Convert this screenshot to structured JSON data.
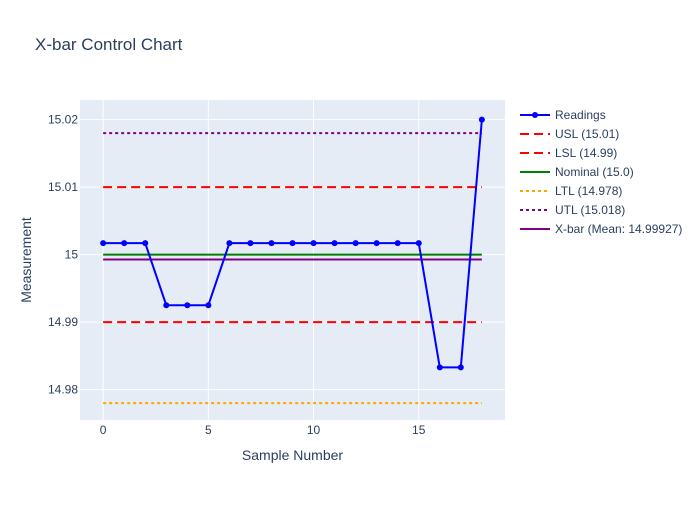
{
  "chart_data": {
    "type": "line",
    "title": "X-bar Control Chart",
    "xlabel": "Sample Number",
    "ylabel": "Measurement",
    "xlim": [
      -1.1,
      19.1
    ],
    "ylim": [
      14.9755,
      15.0229
    ],
    "x_ticks": [
      0,
      5,
      10,
      15
    ],
    "x_tick_labels": [
      "0",
      "5",
      "10",
      "15"
    ],
    "y_ticks": [
      14.98,
      14.99,
      15.0,
      15.01,
      15.02
    ],
    "y_tick_labels": [
      "14.98",
      "14.99",
      "15",
      "15.01",
      "15.02"
    ],
    "grid": true,
    "legend_position": "right",
    "x": [
      0,
      1,
      2,
      3,
      4,
      5,
      6,
      7,
      8,
      9,
      10,
      11,
      12,
      13,
      14,
      15,
      16,
      17,
      18
    ],
    "series": [
      {
        "name": "Readings",
        "kind": "markers+lines",
        "color": "#0000ff",
        "dash": "solid",
        "values": [
          15.0017,
          15.0017,
          15.0017,
          14.9925,
          14.9925,
          14.9925,
          15.0017,
          15.0017,
          15.0017,
          15.0017,
          15.0017,
          15.0017,
          15.0017,
          15.0017,
          15.0017,
          15.0017,
          14.9833,
          14.9833,
          15.02
        ]
      },
      {
        "name": "USL (15.01)",
        "kind": "hline",
        "value": 15.01,
        "color": "#ff0000",
        "dash": "dash"
      },
      {
        "name": "LSL (14.99)",
        "kind": "hline",
        "value": 14.99,
        "color": "#ff0000",
        "dash": "dash"
      },
      {
        "name": "Nominal (15.0)",
        "kind": "hline",
        "value": 15.0,
        "color": "#008000",
        "dash": "solid"
      },
      {
        "name": "LTL (14.978)",
        "kind": "hline",
        "value": 14.978,
        "color": "#ffa500",
        "dash": "dot"
      },
      {
        "name": "UTL (15.018)",
        "kind": "hline",
        "value": 15.018,
        "color": "#800080",
        "dash": "dot"
      },
      {
        "name": "X-bar (Mean: 14.99927)",
        "kind": "hline",
        "value": 14.99927,
        "color": "#800080",
        "dash": "solid"
      }
    ]
  }
}
